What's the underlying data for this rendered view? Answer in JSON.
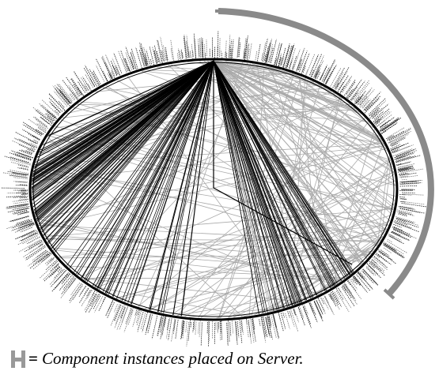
{
  "legend": {
    "symbol_text": "=",
    "text": "Component instances placed on Server."
  }
}
